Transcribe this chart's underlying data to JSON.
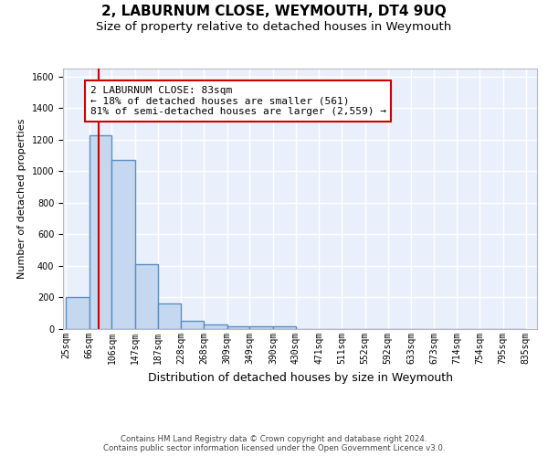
{
  "title": "2, LABURNUM CLOSE, WEYMOUTH, DT4 9UQ",
  "subtitle": "Size of property relative to detached houses in Weymouth",
  "xlabel": "Distribution of detached houses by size in Weymouth",
  "ylabel": "Number of detached properties",
  "bin_edges": [
    25,
    66,
    106,
    147,
    187,
    228,
    268,
    309,
    349,
    390,
    430,
    471,
    511,
    552,
    592,
    633,
    673,
    714,
    754,
    795,
    835
  ],
  "bar_heights": [
    200,
    1230,
    1070,
    410,
    165,
    50,
    30,
    20,
    15,
    15,
    0,
    0,
    0,
    0,
    0,
    0,
    0,
    0,
    0,
    0
  ],
  "bar_color": "#c5d8f0",
  "bar_edge_color": "#5a8fc3",
  "bar_linewidth": 1.0,
  "property_line_x": 83,
  "property_line_color": "#cc0000",
  "annotation_text": "2 LABURNUM CLOSE: 83sqm\n← 18% of detached houses are smaller (561)\n81% of semi-detached houses are larger (2,559) →",
  "annotation_box_color": "#ffffff",
  "annotation_box_edge_color": "#cc0000",
  "ylim": [
    0,
    1650
  ],
  "yticks": [
    0,
    200,
    400,
    600,
    800,
    1000,
    1200,
    1400,
    1600
  ],
  "bg_color": "#eaf0fb",
  "grid_color": "#ffffff",
  "footer_text": "Contains HM Land Registry data © Crown copyright and database right 2024.\nContains public sector information licensed under the Open Government Licence v3.0.",
  "title_fontsize": 11,
  "subtitle_fontsize": 9.5,
  "xlabel_fontsize": 9,
  "ylabel_fontsize": 8,
  "tick_fontsize": 7,
  "annotation_fontsize": 8
}
